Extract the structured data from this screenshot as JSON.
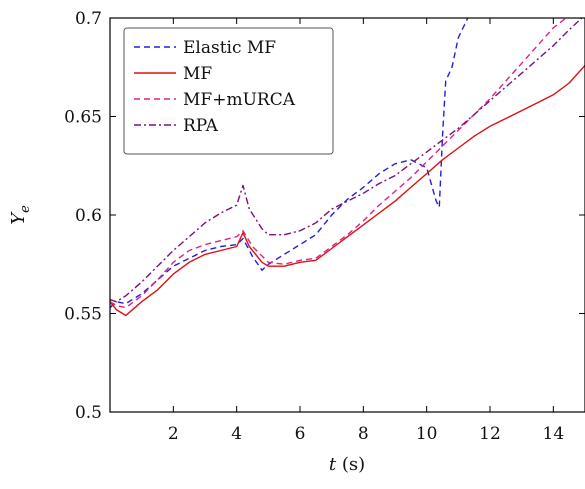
{
  "chart_data": {
    "type": "line",
    "title": "",
    "xlabel_var": "t",
    "xlabel_unit": " (s)",
    "ylabel_var": "Y",
    "ylabel_sub": "e",
    "xlim": [
      0,
      15
    ],
    "ylim": [
      0.5,
      0.7
    ],
    "x_ticks": [
      2,
      4,
      6,
      8,
      10,
      12,
      14
    ],
    "y_ticks": [
      0.5,
      0.55,
      0.6,
      0.65,
      0.7
    ],
    "x_tick_labels": [
      "2",
      "4",
      "6",
      "8",
      "10",
      "12",
      "14"
    ],
    "y_tick_labels": [
      "0.5",
      "0.55",
      "0.6",
      "0.65",
      "0.7"
    ],
    "grid": false,
    "legend_position": "top-left",
    "series": [
      {
        "name": "Elastic MF",
        "color": "#1f1fe0",
        "dash": "dashed",
        "x": [
          0.0,
          0.2,
          0.5,
          1.0,
          1.5,
          2.0,
          2.5,
          3.0,
          3.5,
          4.0,
          4.2,
          4.5,
          4.8,
          5.0,
          5.5,
          6.0,
          6.5,
          7.0,
          7.5,
          8.0,
          8.5,
          9.0,
          9.5,
          10.0,
          10.3,
          10.4,
          10.5,
          10.6,
          10.8,
          11.0,
          11.3
        ],
        "y": [
          0.553,
          0.556,
          0.555,
          0.56,
          0.567,
          0.574,
          0.578,
          0.582,
          0.584,
          0.585,
          0.588,
          0.579,
          0.572,
          0.575,
          0.58,
          0.585,
          0.59,
          0.6,
          0.608,
          0.614,
          0.621,
          0.626,
          0.628,
          0.624,
          0.607,
          0.604,
          0.64,
          0.668,
          0.675,
          0.69,
          0.7
        ]
      },
      {
        "name": "MF",
        "color": "#e01010",
        "dash": "solid",
        "x": [
          0.0,
          0.2,
          0.5,
          1.0,
          1.5,
          2.0,
          2.5,
          3.0,
          3.5,
          4.0,
          4.2,
          4.4,
          4.8,
          5.0,
          5.5,
          6.0,
          6.5,
          7.0,
          7.5,
          8.0,
          8.5,
          9.0,
          9.5,
          10.0,
          10.5,
          11.0,
          11.5,
          12.0,
          12.5,
          13.0,
          13.5,
          14.0,
          14.5,
          15.0
        ],
        "y": [
          0.556,
          0.552,
          0.549,
          0.556,
          0.562,
          0.57,
          0.576,
          0.58,
          0.582,
          0.584,
          0.591,
          0.584,
          0.576,
          0.574,
          0.574,
          0.576,
          0.577,
          0.583,
          0.589,
          0.595,
          0.601,
          0.607,
          0.614,
          0.621,
          0.628,
          0.634,
          0.64,
          0.645,
          0.649,
          0.653,
          0.657,
          0.661,
          0.667,
          0.676
        ]
      },
      {
        "name": "MF+mURCA",
        "color": "#e0208a",
        "dash": "dashed",
        "x": [
          0.0,
          0.2,
          0.5,
          1.0,
          1.5,
          2.0,
          2.5,
          3.0,
          3.5,
          4.0,
          4.2,
          4.5,
          5.0,
          5.5,
          6.0,
          6.5,
          7.0,
          7.5,
          8.0,
          8.5,
          9.0,
          9.5,
          10.0,
          10.5,
          11.0,
          11.5,
          12.0,
          12.5,
          13.0,
          13.5,
          14.0,
          14.4
        ],
        "y": [
          0.556,
          0.554,
          0.553,
          0.559,
          0.567,
          0.576,
          0.582,
          0.585,
          0.587,
          0.589,
          0.592,
          0.584,
          0.576,
          0.575,
          0.577,
          0.578,
          0.584,
          0.59,
          0.597,
          0.605,
          0.612,
          0.619,
          0.627,
          0.635,
          0.643,
          0.651,
          0.659,
          0.668,
          0.677,
          0.686,
          0.695,
          0.7
        ]
      },
      {
        "name": "RPA",
        "color": "#7a1078",
        "dash": "dashdot",
        "x": [
          0.0,
          0.2,
          0.5,
          1.0,
          1.5,
          2.0,
          2.5,
          3.0,
          3.5,
          4.0,
          4.2,
          4.4,
          4.8,
          5.0,
          5.5,
          6.0,
          6.5,
          7.0,
          7.5,
          8.0,
          8.5,
          9.0,
          9.5,
          10.0,
          10.5,
          11.0,
          11.5,
          12.0,
          12.5,
          13.0,
          13.5,
          14.0,
          14.5,
          14.9
        ],
        "y": [
          0.557,
          0.556,
          0.559,
          0.566,
          0.574,
          0.582,
          0.589,
          0.596,
          0.601,
          0.605,
          0.615,
          0.603,
          0.593,
          0.59,
          0.59,
          0.592,
          0.596,
          0.603,
          0.607,
          0.611,
          0.616,
          0.62,
          0.626,
          0.632,
          0.638,
          0.644,
          0.651,
          0.658,
          0.665,
          0.672,
          0.679,
          0.686,
          0.694,
          0.7
        ]
      }
    ]
  }
}
